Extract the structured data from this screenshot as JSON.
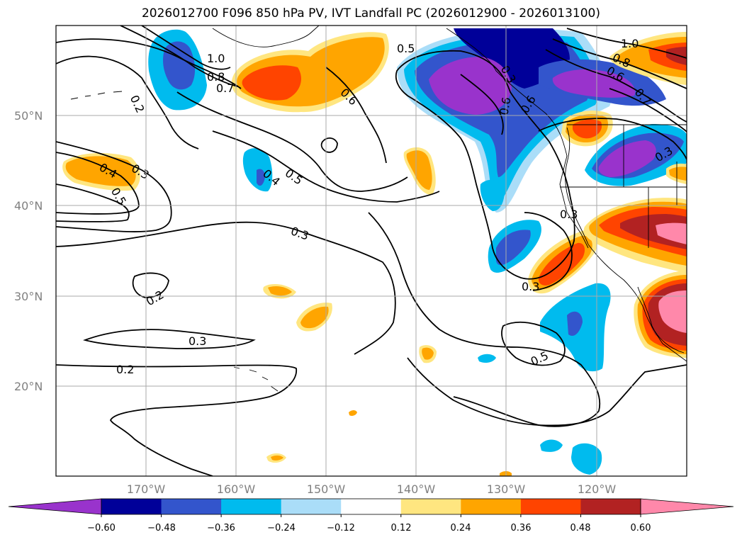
{
  "title": "2026012700 F096 850 hPa PV, IVT Landfall PC (2026012900 - 2026013100)",
  "map": {
    "extent": {
      "lon_min": -180,
      "lon_max": -110,
      "lat_min": 10,
      "lat_max": 60
    },
    "lat_ticks": [
      "50°N",
      "40°N",
      "30°N",
      "20°N"
    ],
    "lon_ticks": [
      "170°W",
      "160°W",
      "150°W",
      "140°W",
      "130°W",
      "120°W"
    ],
    "grid": true
  },
  "colorbar": {
    "levels": [
      "−0.60",
      "−0.48",
      "−0.36",
      "−0.24",
      "−0.12",
      "0.12",
      "0.24",
      "0.36",
      "0.48",
      "0.60"
    ],
    "colors": [
      "#9933cc",
      "#000099",
      "#3355cc",
      "#00bbee",
      "#aaddf8",
      "#ffffff",
      "#ffe680",
      "#ffa500",
      "#ff4400",
      "#b22222",
      "#ff88aa"
    ],
    "extend": "both"
  },
  "contour_labels": [
    "1.0",
    "0.8",
    "0.7",
    "0.2",
    "0.6",
    "0.5",
    "0.4",
    "0.3",
    "0.5",
    "0.3",
    "0.4",
    "0.5",
    "0.3",
    "0.2",
    "0.3",
    "0.2",
    "0.5",
    "0.3",
    "0.3",
    "1.0",
    "0.8",
    "0.6",
    "0.7",
    "0.3",
    "0.6",
    "0.6"
  ]
}
